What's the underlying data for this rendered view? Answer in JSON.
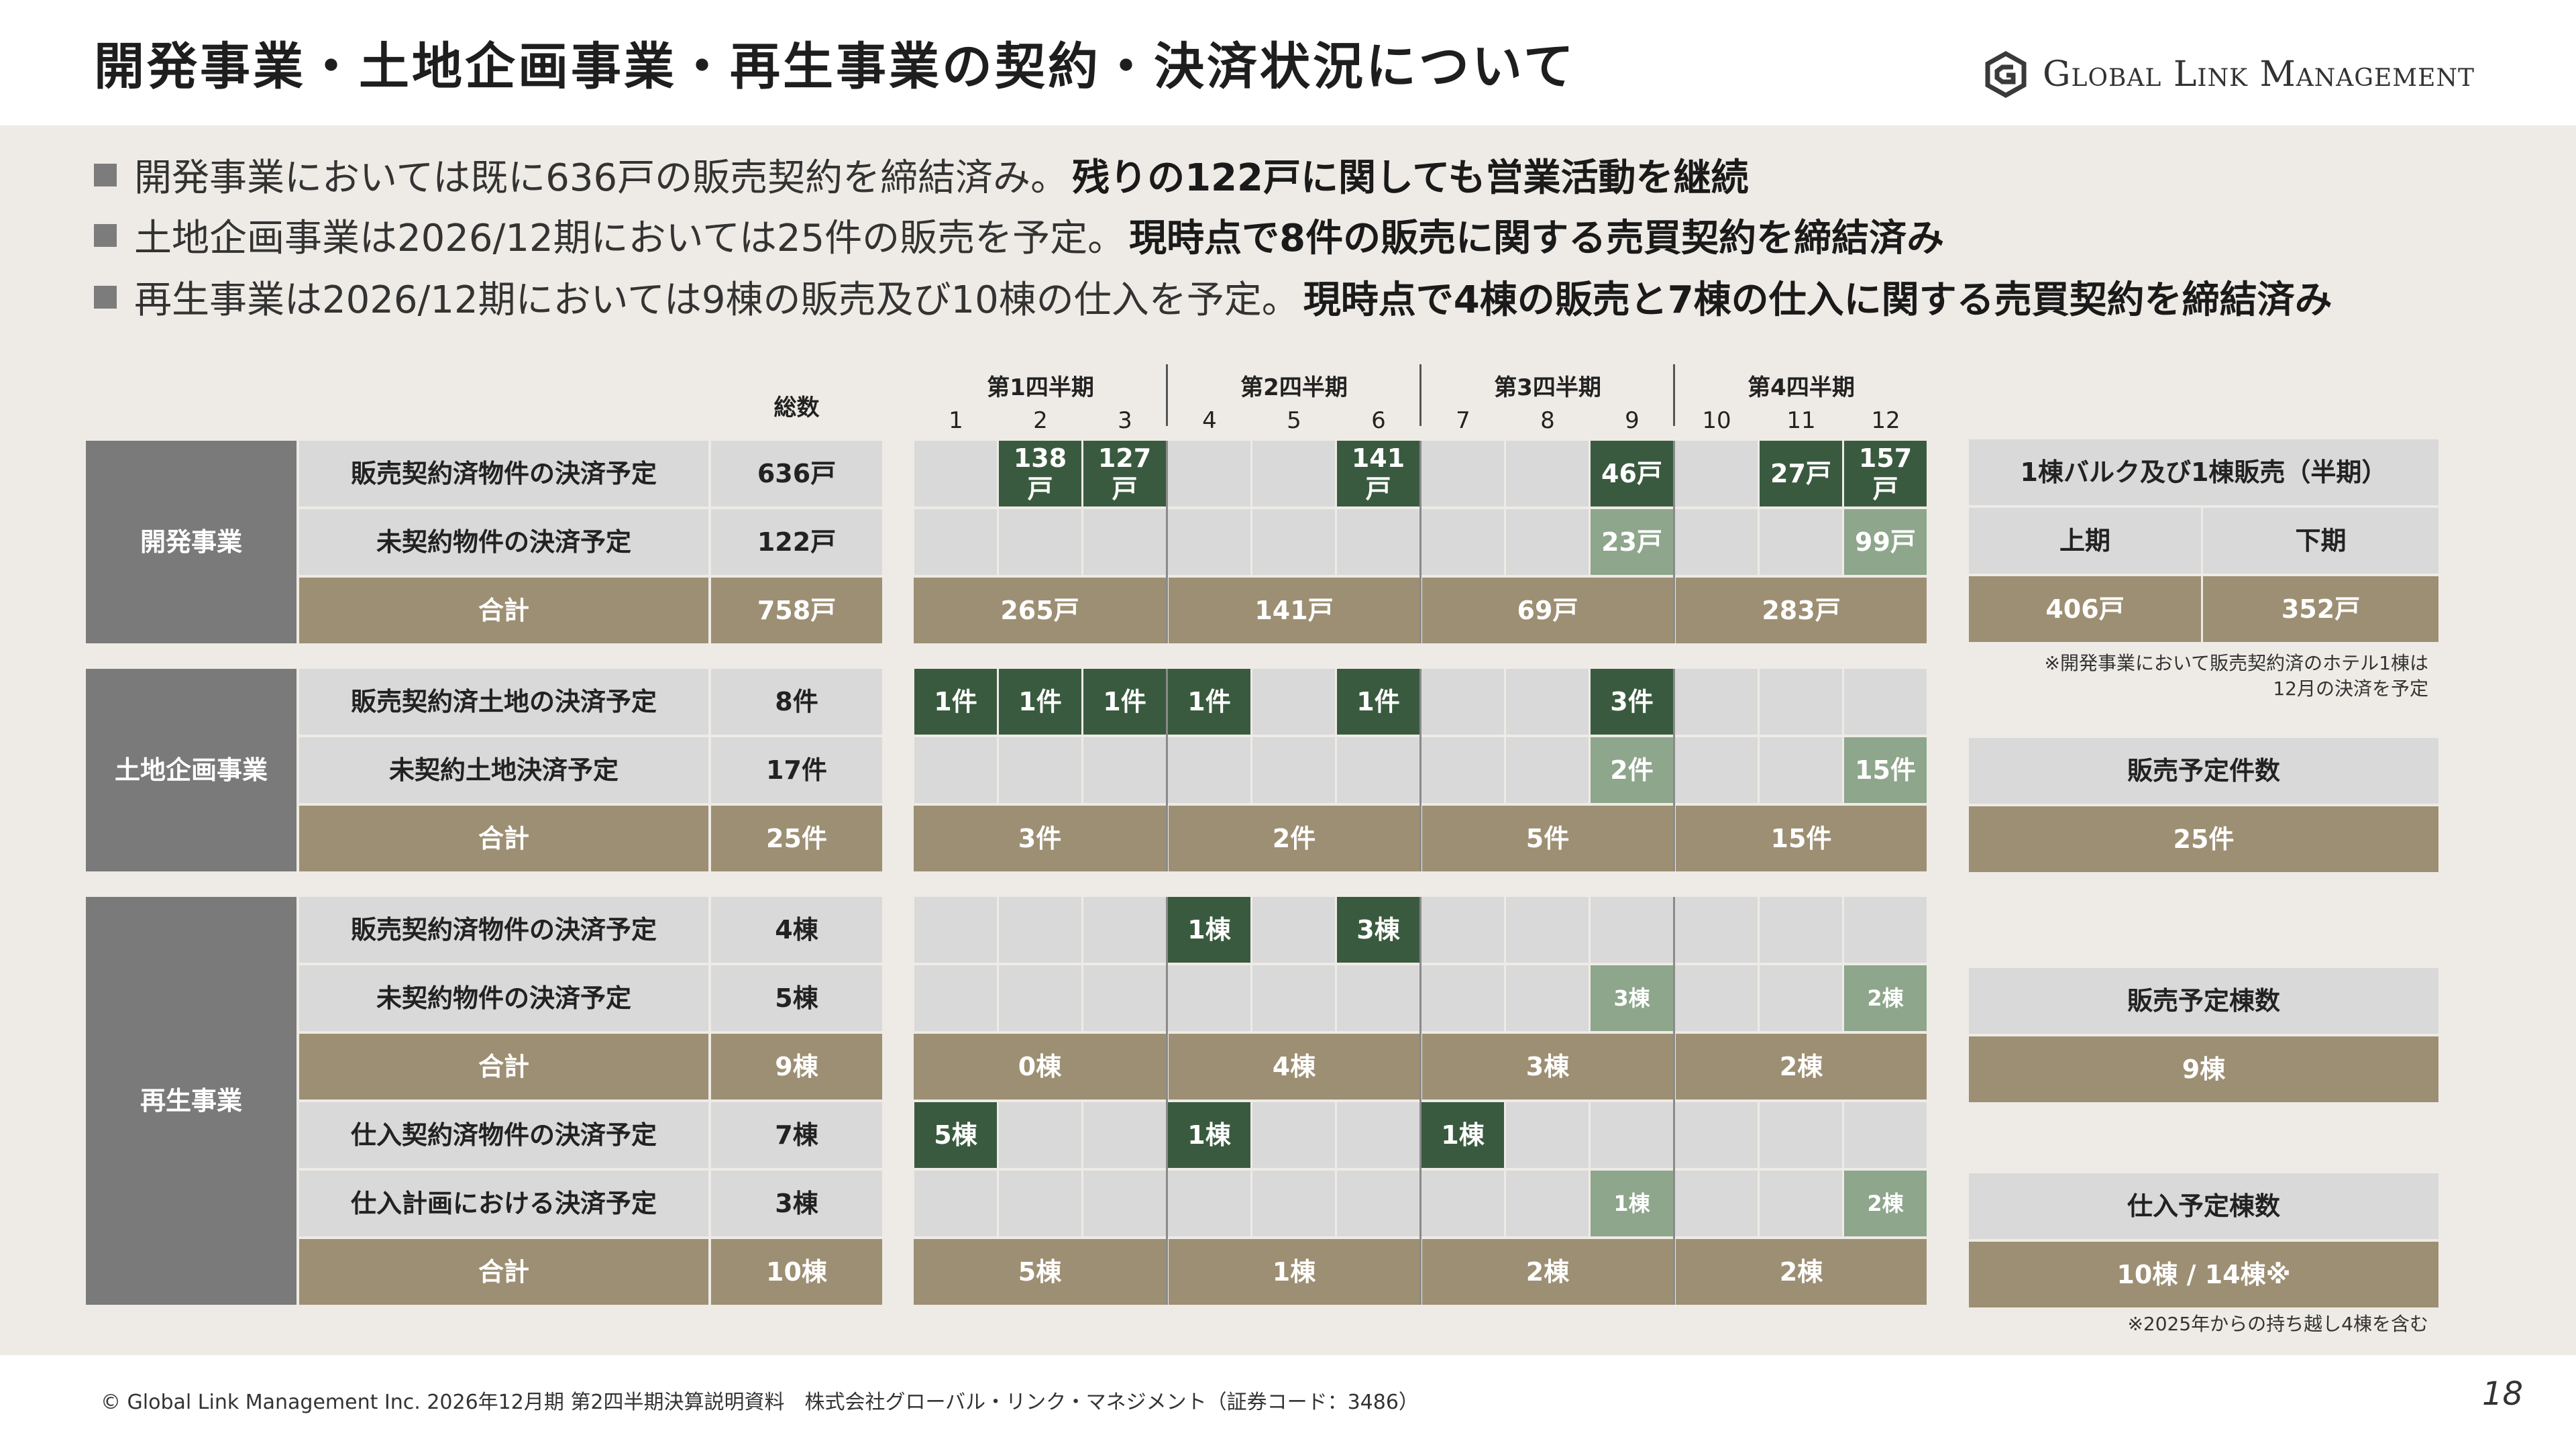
{
  "title": "開発事業・土地企画事業・再生事業の契約・決済状況について",
  "logo": {
    "text": "Global Link Management",
    "icon": "glm-logo-icon"
  },
  "bullets": [
    {
      "normal": "開発事業においては既に636戸の販売契約を締結済み。",
      "bold": "残りの122戸に関しても営業活動を継続"
    },
    {
      "normal": "土地企画事業は2026/12期においては25件の販売を予定。",
      "bold": "現時点で8件の販売に関する売買契約を締結済み"
    },
    {
      "normal": "再生事業は2026/12期においては9棟の販売及び10棟の仕入を予定。",
      "bold": "現時点で4棟の販売と7棟の仕入に関する売買契約を締結済み"
    }
  ],
  "table": {
    "total_header": "総数",
    "quarters": [
      "第1四半期",
      "第2四半期",
      "第3四半期",
      "第4四半期"
    ],
    "months": [
      "1",
      "2",
      "3",
      "4",
      "5",
      "6",
      "7",
      "8",
      "9",
      "10",
      "11",
      "12"
    ],
    "sections": [
      {
        "name": "開発事業",
        "rows": [
          {
            "label": "販売契約済物件の決済予定",
            "total": "636戸",
            "type": "detail",
            "cells": [
              "",
              "138\n戸",
              "127\n戸",
              "",
              "",
              "141\n戸",
              "",
              "",
              "46戸",
              "",
              "27戸",
              "157\n戸"
            ],
            "shades": [
              "",
              "dk",
              "dk",
              "",
              "",
              "dk",
              "",
              "",
              "dk",
              "",
              "dk",
              "dk"
            ]
          },
          {
            "label": "未契約物件の決済予定",
            "total": "122戸",
            "type": "detail",
            "cells": [
              "",
              "",
              "",
              "",
              "",
              "",
              "",
              "",
              "23戸",
              "",
              "",
              "99戸"
            ],
            "shades": [
              "",
              "",
              "",
              "",
              "",
              "",
              "",
              "",
              "lt",
              "",
              "",
              "lt"
            ]
          },
          {
            "label": "合計",
            "total": "758戸",
            "type": "total",
            "quarters": [
              "265戸",
              "141戸",
              "69戸",
              "283戸"
            ]
          }
        ]
      },
      {
        "name": "土地企画事業",
        "rows": [
          {
            "label": "販売契約済土地の決済予定",
            "total": "8件",
            "type": "detail",
            "cells": [
              "1件",
              "1件",
              "1件",
              "1件",
              "",
              "1件",
              "",
              "",
              "3件",
              "",
              "",
              ""
            ],
            "shades": [
              "dk",
              "dk",
              "dk",
              "dk",
              "",
              "dk",
              "",
              "",
              "dk",
              "",
              "",
              ""
            ]
          },
          {
            "label": "未契約土地決済予定",
            "total": "17件",
            "type": "detail",
            "cells": [
              "",
              "",
              "",
              "",
              "",
              "",
              "",
              "",
              "2件",
              "",
              "",
              "15件"
            ],
            "shades": [
              "",
              "",
              "",
              "",
              "",
              "",
              "",
              "",
              "lt",
              "",
              "",
              "lt"
            ]
          },
          {
            "label": "合計",
            "total": "25件",
            "type": "total",
            "quarters": [
              "3件",
              "2件",
              "5件",
              "15件"
            ]
          }
        ]
      },
      {
        "name": "再生事業",
        "rows": [
          {
            "label": "販売契約済物件の決済予定",
            "total": "4棟",
            "type": "detail",
            "cells": [
              "",
              "",
              "",
              "1棟",
              "",
              "3棟",
              "",
              "",
              "",
              "",
              "",
              ""
            ],
            "shades": [
              "",
              "",
              "",
              "dk",
              "",
              "dk",
              "",
              "",
              "",
              "",
              "",
              ""
            ]
          },
          {
            "label": "未契約物件の決済予定",
            "total": "5棟",
            "type": "detail",
            "cells": [
              "",
              "",
              "",
              "",
              "",
              "",
              "",
              "",
              "3棟",
              "",
              "",
              "2棟"
            ],
            "shades": [
              "",
              "",
              "",
              "",
              "",
              "",
              "",
              "",
              "lt",
              "",
              "",
              "lt"
            ]
          },
          {
            "label": "合計",
            "total": "9棟",
            "type": "total",
            "quarters": [
              "0棟",
              "4棟",
              "3棟",
              "2棟"
            ]
          },
          {
            "label": "仕入契約済物件の決済予定",
            "total": "7棟",
            "type": "detail",
            "cells": [
              "5棟",
              "",
              "",
              "1棟",
              "",
              "",
              "1棟",
              "",
              "",
              "",
              "",
              ""
            ],
            "shades": [
              "dk",
              "",
              "",
              "dk",
              "",
              "",
              "dk",
              "",
              "",
              "",
              "",
              ""
            ]
          },
          {
            "label": "仕入計画における決済予定",
            "total": "3棟",
            "type": "detail",
            "cells": [
              "",
              "",
              "",
              "",
              "",
              "",
              "",
              "",
              "1棟",
              "",
              "",
              "2棟"
            ],
            "shades": [
              "",
              "",
              "",
              "",
              "",
              "",
              "",
              "",
              "lt",
              "",
              "",
              "lt"
            ]
          },
          {
            "label": "合計",
            "total": "10棟",
            "type": "total",
            "quarters": [
              "5棟",
              "1棟",
              "2棟",
              "2棟"
            ]
          }
        ]
      }
    ]
  },
  "side": {
    "bulk_title": "1棟バルク及び1棟販売（半期）",
    "first_half": "上期",
    "second_half": "下期",
    "first_value": "406戸",
    "second_value": "352戸",
    "hotel_note_1": "※開発事業において販売契約済のホテル1棟は",
    "hotel_note_2": "12月の決済を予定",
    "land_title": "販売予定件数",
    "land_value": "25件",
    "sale_title": "販売予定棟数",
    "sale_value": "9棟",
    "purchase_title": "仕入予定棟数",
    "purchase_value": "10棟 / 14棟※",
    "carry_note": "※2025年からの持ち越し4棟を含む"
  },
  "footer": "© Global Link Management Inc. 2026年12月期 第2四半期決算説明資料　株式会社グローバル・リンク・マネジメント（証券コード：3486）",
  "page_number": "18"
}
